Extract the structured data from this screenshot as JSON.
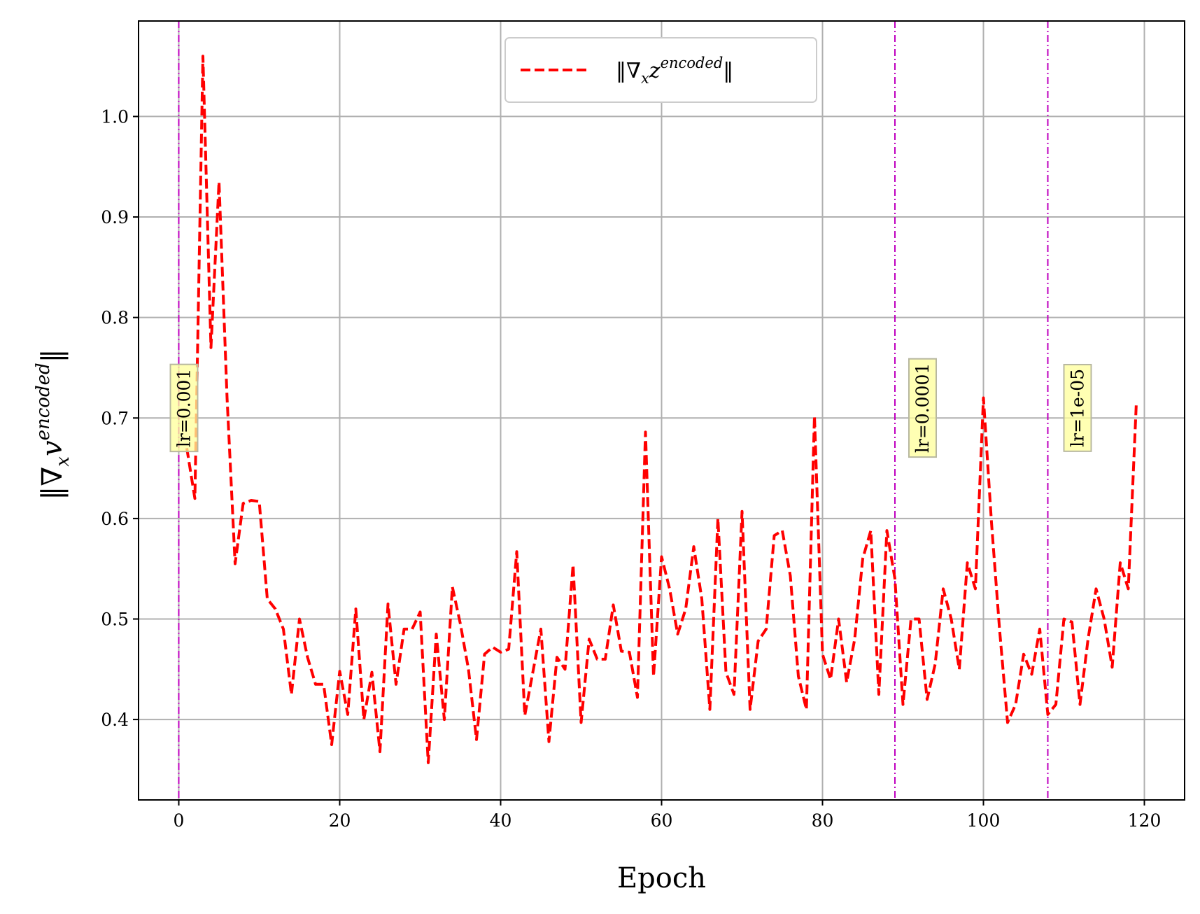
{
  "chart_data": {
    "type": "line",
    "xlabel": "Epoch",
    "ylabel": "‖∇ₓv^encoded‖",
    "xlim": [
      -5,
      125
    ],
    "ylim": [
      0.32,
      1.095
    ],
    "xticks": [
      0,
      20,
      40,
      60,
      80,
      100,
      120
    ],
    "yticks": [
      0.4,
      0.5,
      0.6,
      0.7,
      0.8,
      0.9,
      1.0
    ],
    "xtick_labels": [
      "0",
      "20",
      "40",
      "60",
      "80",
      "100",
      "120"
    ],
    "ytick_labels": [
      "0.4",
      "0.5",
      "0.6",
      "0.7",
      "0.8",
      "0.9",
      "1.0"
    ],
    "grid": true,
    "legend_position": "top-center",
    "series": [
      {
        "name": "‖∇ₓz^encoded‖",
        "style": "dashed",
        "color": "#ff0000",
        "x": [
          1,
          2,
          3,
          4,
          5,
          6,
          7,
          8,
          9,
          10,
          11,
          12,
          13,
          14,
          15,
          16,
          17,
          18,
          19,
          20,
          21,
          22,
          23,
          24,
          25,
          26,
          27,
          28,
          29,
          30,
          31,
          32,
          33,
          34,
          35,
          36,
          37,
          38,
          39,
          40,
          41,
          42,
          43,
          44,
          45,
          46,
          47,
          48,
          49,
          50,
          51,
          52,
          53,
          54,
          55,
          56,
          57,
          58,
          59,
          60,
          61,
          62,
          63,
          64,
          65,
          66,
          67,
          68,
          69,
          70,
          71,
          72,
          73,
          74,
          75,
          76,
          77,
          78,
          79,
          80,
          81,
          82,
          83,
          84,
          85,
          86,
          87,
          88,
          89,
          90,
          91,
          92,
          93,
          94,
          95,
          96,
          97,
          98,
          99,
          100,
          101,
          102,
          103,
          104,
          105,
          106,
          107,
          108,
          109,
          110,
          111,
          112,
          113,
          114,
          115,
          116,
          117,
          118,
          119
        ],
        "y": [
          0.67,
          0.62,
          1.06,
          0.77,
          0.935,
          0.72,
          0.555,
          0.615,
          0.618,
          0.617,
          0.52,
          0.51,
          0.49,
          0.425,
          0.5,
          0.462,
          0.435,
          0.435,
          0.375,
          0.448,
          0.405,
          0.51,
          0.4,
          0.447,
          0.368,
          0.515,
          0.435,
          0.49,
          0.49,
          0.507,
          0.357,
          0.485,
          0.4,
          0.532,
          0.495,
          0.45,
          0.38,
          0.465,
          0.472,
          0.467,
          0.47,
          0.567,
          0.404,
          0.447,
          0.49,
          0.378,
          0.462,
          0.45,
          0.554,
          0.397,
          0.48,
          0.46,
          0.46,
          0.514,
          0.468,
          0.467,
          0.422,
          0.686,
          0.443,
          0.562,
          0.53,
          0.485,
          0.51,
          0.572,
          0.52,
          0.41,
          0.6,
          0.447,
          0.425,
          0.607,
          0.41,
          0.478,
          0.49,
          0.583,
          0.588,
          0.543,
          0.443,
          0.41,
          0.702,
          0.465,
          0.44,
          0.5,
          0.437,
          0.48,
          0.56,
          0.588,
          0.425,
          0.588,
          0.54,
          0.415,
          0.5,
          0.5,
          0.42,
          0.455,
          0.53,
          0.5,
          0.45,
          0.556,
          0.53,
          0.72,
          0.596,
          0.49,
          0.397,
          0.415,
          0.465,
          0.445,
          0.49,
          0.405,
          0.415,
          0.5,
          0.497,
          0.415,
          0.48,
          0.53,
          0.5,
          0.452,
          0.556,
          0.53,
          0.715
        ]
      }
    ],
    "vlines": [
      {
        "x": 0,
        "label": "lr=0.001",
        "color": "#bf00bf"
      },
      {
        "x": 89,
        "label": "lr=0.0001",
        "color": "#bf00bf"
      },
      {
        "x": 108,
        "label": "lr=1e-05",
        "color": "#bf00bf"
      }
    ],
    "legend": {
      "label_base": "‖∇",
      "label_sub": "x",
      "label_main": "z",
      "label_sup": "encoded",
      "label_end": "‖"
    },
    "ylabel_parts": {
      "base": "‖∇",
      "sub": "x",
      "main": "v",
      "sup": "encoded",
      "end": "‖"
    }
  }
}
